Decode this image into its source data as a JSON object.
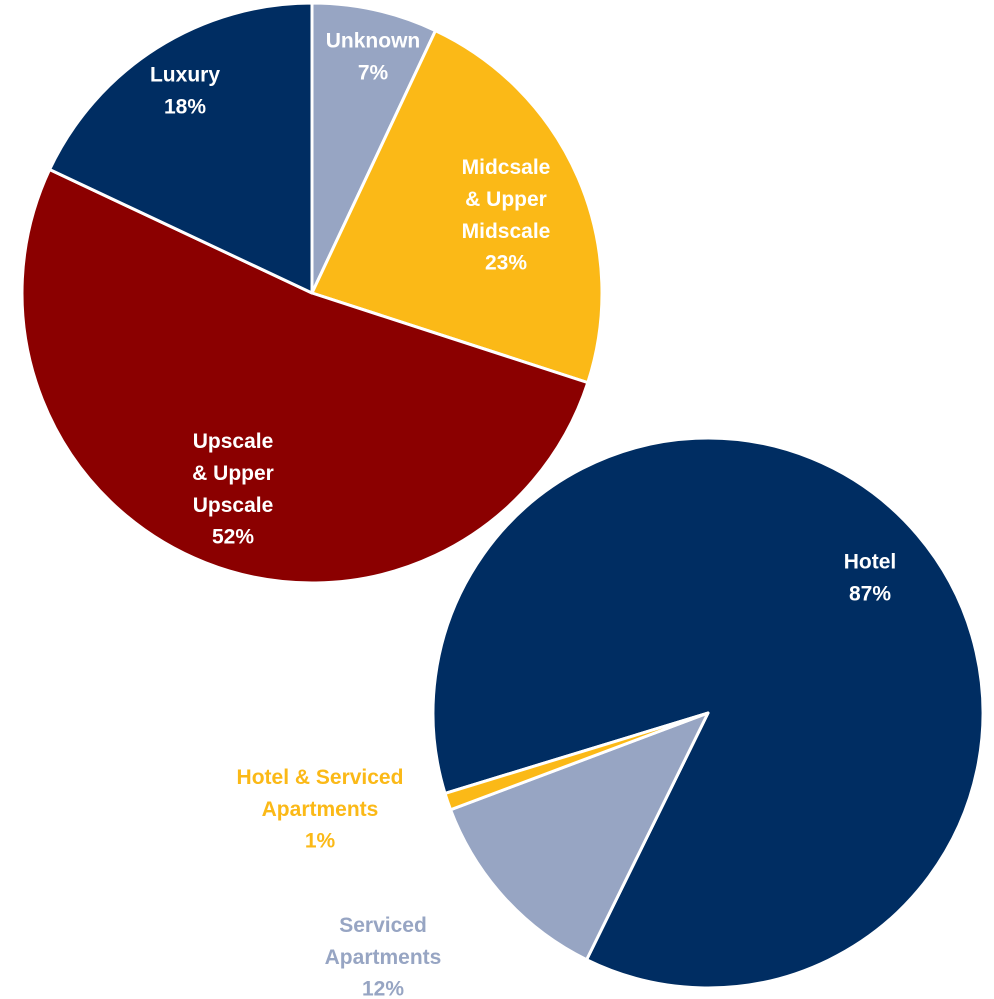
{
  "chart_data": [
    {
      "type": "pie",
      "categories": [
        "Unknown",
        "Midcsale\n& Upper\nMidscale",
        "Upscale\n& Upper\nUpscale",
        "Luxury"
      ],
      "values": [
        7,
        23,
        52,
        18
      ],
      "value_labels": [
        "7%",
        "23%",
        "52%",
        "18%"
      ],
      "colors": [
        "#97a5c3",
        "#fbb917",
        "#8b0000",
        "#002d62"
      ]
    },
    {
      "type": "pie",
      "categories": [
        "Hotel",
        "Serviced\nApartments",
        "Hotel & Serviced\nApartments"
      ],
      "values": [
        87,
        12,
        1
      ],
      "value_labels": [
        "87%",
        "12%",
        "1%"
      ],
      "colors": [
        "#002d62",
        "#97a5c3",
        "#fbb917"
      ]
    }
  ]
}
